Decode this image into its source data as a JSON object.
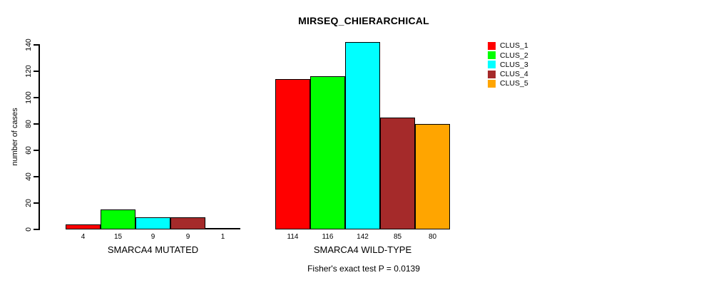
{
  "chart_data": {
    "type": "bar",
    "title": "MIRSEQ_CHIERARCHICAL",
    "ylabel": "number of cases",
    "xlabel": "",
    "categories": [
      "SMARCA4 MUTATED",
      "SMARCA4 WILD-TYPE"
    ],
    "series": [
      {
        "name": "CLUS_1",
        "color": "#FF0000",
        "values": [
          4,
          114
        ]
      },
      {
        "name": "CLUS_2",
        "color": "#00FF00",
        "values": [
          15,
          116
        ]
      },
      {
        "name": "CLUS_3",
        "color": "#00FFFF",
        "values": [
          9,
          142
        ]
      },
      {
        "name": "CLUS_4",
        "color": "#A52A2A",
        "values": [
          9,
          85
        ]
      },
      {
        "name": "CLUS_5",
        "color": "#FFA500",
        "values": [
          1,
          80
        ]
      }
    ],
    "y_ticks": [
      0,
      20,
      40,
      60,
      80,
      100,
      120,
      140
    ],
    "ylim": [
      0,
      145
    ],
    "grid": false,
    "bar_value_labels_shown": true,
    "legend_position": "right",
    "annotation": "Fisher's exact test P = 0.0139"
  }
}
